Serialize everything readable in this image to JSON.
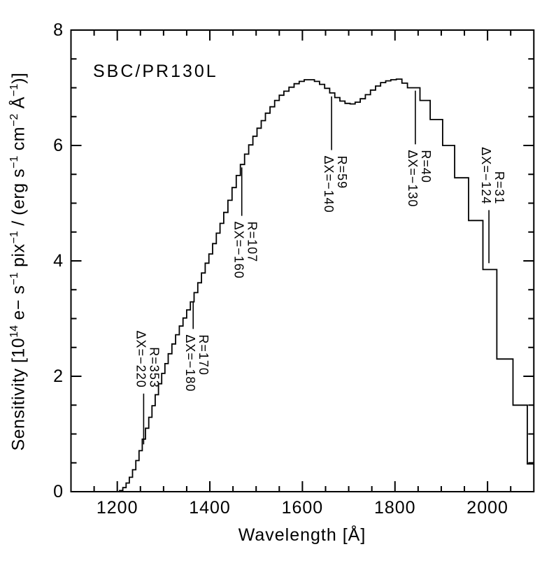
{
  "title": "SBC/PR130L",
  "chart_data": {
    "type": "line",
    "style": "step-histogram",
    "title": "SBC/PR130L",
    "xlabel": "Wavelength [Å]",
    "ylabel": "Sensitivity [10¹⁴ e− s⁻¹ pix⁻¹ / (erg s⁻¹ cm⁻² Å⁻¹)]",
    "ylabel_parts": [
      "Sensitivity [10",
      "14",
      " e− s",
      "−1",
      " pix",
      "−1",
      " / (erg s",
      "−1",
      " cm",
      "−2",
      " Å",
      "−1",
      ")]"
    ],
    "xlim": [
      1100,
      2100
    ],
    "ylim": [
      0,
      8
    ],
    "x_major_ticks": [
      1200,
      1400,
      1600,
      1800,
      2000
    ],
    "x_minor_step": 50,
    "y_major_ticks": [
      0,
      2,
      4,
      6,
      8
    ],
    "y_minor_step": 0.5,
    "grid": "off",
    "line_color": "#000000",
    "background_color": "#ffffff",
    "series": [
      {
        "name": "sensitivity",
        "bin_edges": [
          1205,
          1212,
          1219,
          1226,
          1233,
          1240,
          1247,
          1254,
          1261,
          1268,
          1275,
          1282,
          1289,
          1296,
          1303,
          1310,
          1318,
          1326,
          1334,
          1342,
          1350,
          1358,
          1366,
          1374,
          1382,
          1390,
          1398,
          1406,
          1414,
          1422,
          1430,
          1439,
          1448,
          1457,
          1466,
          1475,
          1484,
          1493,
          1502,
          1511,
          1520,
          1530,
          1540,
          1550,
          1560,
          1571,
          1582,
          1593,
          1604,
          1615,
          1626,
          1637,
          1648,
          1659,
          1670,
          1681,
          1692,
          1703,
          1714,
          1725,
          1736,
          1747,
          1758,
          1769,
          1780,
          1791,
          1803,
          1815,
          1827,
          1854,
          1876,
          1903,
          1929,
          1959,
          1990,
          2020,
          2055,
          2086,
          2100
        ],
        "values": [
          0.02,
          0.07,
          0.15,
          0.25,
          0.38,
          0.54,
          0.71,
          0.91,
          1.1,
          1.29,
          1.49,
          1.68,
          1.87,
          2.05,
          2.22,
          2.39,
          2.56,
          2.72,
          2.87,
          3.01,
          3.15,
          3.29,
          3.45,
          3.62,
          3.79,
          3.96,
          4.12,
          4.3,
          4.48,
          4.65,
          4.84,
          5.05,
          5.27,
          5.48,
          5.67,
          5.85,
          6.01,
          6.16,
          6.3,
          6.43,
          6.56,
          6.67,
          6.78,
          6.87,
          6.94,
          7.01,
          7.07,
          7.11,
          7.14,
          7.14,
          7.11,
          7.06,
          6.99,
          6.91,
          6.83,
          6.77,
          6.73,
          6.72,
          6.75,
          6.81,
          6.88,
          6.96,
          7.03,
          7.09,
          7.12,
          7.14,
          7.15,
          7.08,
          7.0,
          6.78,
          6.45,
          6.0,
          5.44,
          4.7,
          3.85,
          2.3,
          1.5,
          0.48
        ]
      }
    ],
    "annotations": [
      {
        "r": "R=353",
        "dx": "ΔX=−220",
        "wavelength": 1257,
        "line_top": 1.7,
        "line_bottom": 0.82,
        "label_side": "above"
      },
      {
        "r": "R=170",
        "dx": "ΔX=−180",
        "wavelength": 1364,
        "line_top": 3.3,
        "line_bottom": 2.82,
        "label_side": "below"
      },
      {
        "r": "R=107",
        "dx": "ΔX=−160",
        "wavelength": 1469,
        "line_top": 5.62,
        "line_bottom": 4.78,
        "label_side": "below"
      },
      {
        "r": "R=59",
        "dx": "ΔX=−140",
        "wavelength": 1663,
        "line_top": 6.85,
        "line_bottom": 5.92,
        "label_side": "below"
      },
      {
        "r": "R=40",
        "dx": "ΔX=−130",
        "wavelength": 1844,
        "line_top": 6.95,
        "line_bottom": 6.02,
        "label_side": "below"
      },
      {
        "r": "R=31",
        "dx": "ΔX=−124",
        "wavelength": 2003,
        "line_top": 4.88,
        "line_bottom": 3.96,
        "label_side": "above"
      }
    ]
  }
}
